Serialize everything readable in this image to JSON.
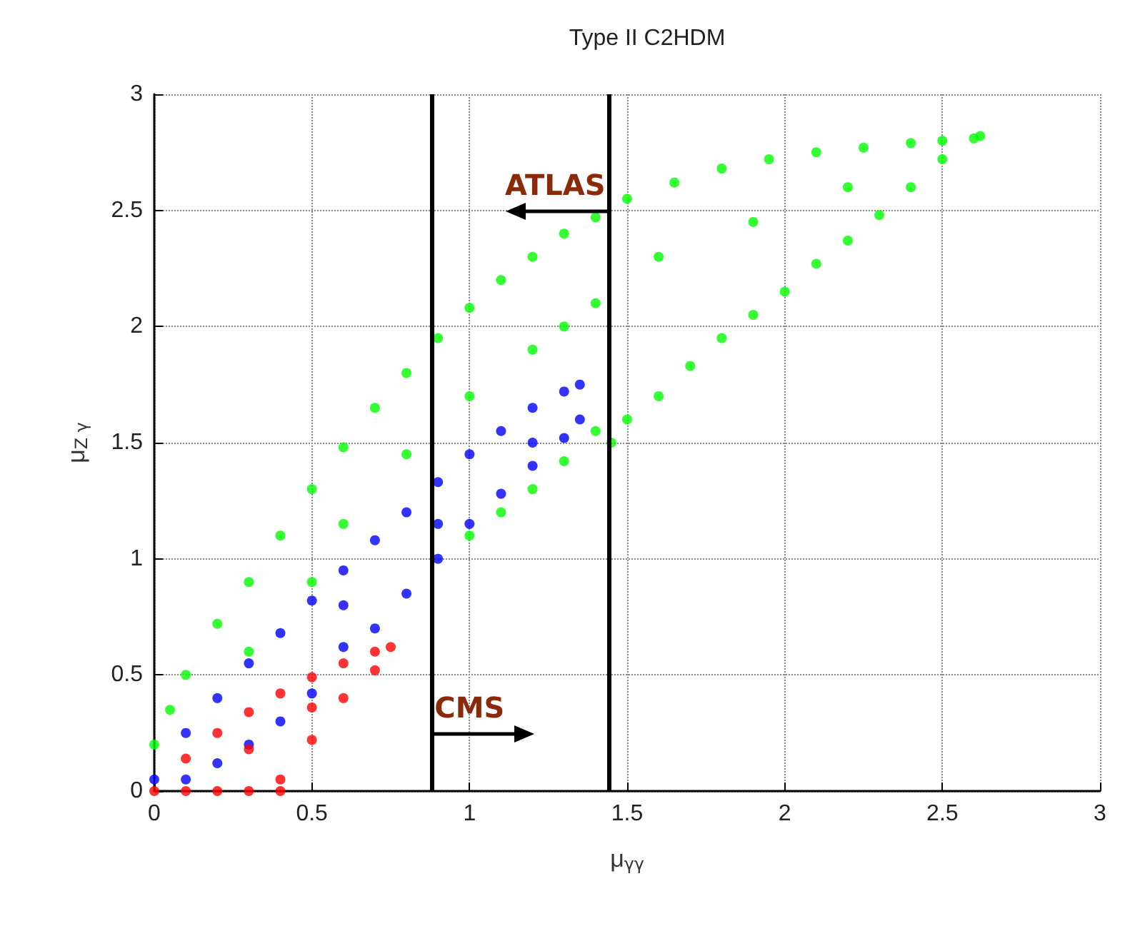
{
  "chart_data": {
    "type": "scatter",
    "title": "Type II C2HDM",
    "xlabel": "μ$_{γγ}$",
    "ylabel": "μ$_{Z γ}$",
    "xlim": [
      0,
      3
    ],
    "ylim": [
      0,
      3
    ],
    "xticks": [
      0,
      0.5,
      1,
      1.5,
      2,
      2.5,
      3
    ],
    "yticks": [
      0,
      0.5,
      1,
      1.5,
      2,
      2.5,
      3
    ],
    "grid": true,
    "marker": "circle",
    "series": [
      {
        "color": "#00ff00",
        "x": [
          0,
          0.05,
          0.1,
          0.2,
          0.3,
          0.4,
          0.5,
          0.6,
          0.7,
          0.8,
          0.9,
          1.0,
          1.1,
          1.2,
          1.3,
          1.4,
          1.5,
          1.65,
          1.8,
          1.95,
          2.1,
          2.25,
          2.4,
          2.5,
          2.6,
          2.62,
          2.5,
          2.4,
          2.3,
          2.2,
          2.1,
          2.0,
          1.9,
          1.8,
          1.7,
          1.6,
          1.5,
          1.45,
          1.4,
          1.3,
          1.2,
          1.1,
          1.0,
          1.3,
          1.6,
          1.9,
          2.2,
          1.0,
          1.2,
          1.4,
          0.6,
          0.8,
          0.3,
          0.5
        ],
        "values": [
          0.2,
          0.35,
          0.5,
          0.72,
          0.9,
          1.1,
          1.3,
          1.48,
          1.65,
          1.8,
          1.95,
          2.08,
          2.2,
          2.3,
          2.4,
          2.47,
          2.55,
          2.62,
          2.68,
          2.72,
          2.75,
          2.77,
          2.79,
          2.8,
          2.81,
          2.82,
          2.72,
          2.6,
          2.48,
          2.37,
          2.27,
          2.15,
          2.05,
          1.95,
          1.83,
          1.7,
          1.6,
          1.5,
          1.55,
          1.42,
          1.3,
          1.2,
          1.1,
          2.0,
          2.3,
          2.45,
          2.6,
          1.7,
          1.9,
          2.1,
          1.15,
          1.45,
          0.6,
          0.9
        ]
      },
      {
        "color": "#0000ff",
        "x": [
          0,
          0.1,
          0.2,
          0.3,
          0.4,
          0.5,
          0.6,
          0.7,
          0.8,
          0.9,
          1.0,
          1.1,
          1.2,
          1.3,
          1.35,
          1.35,
          1.3,
          1.2,
          1.1,
          1.0,
          0.9,
          0.8,
          0.7,
          0.6,
          0.5,
          0.4,
          0.3,
          0.2,
          0.1,
          0.6,
          0.9,
          1.2
        ],
        "values": [
          0.05,
          0.25,
          0.4,
          0.55,
          0.68,
          0.82,
          0.95,
          1.08,
          1.2,
          1.33,
          1.45,
          1.55,
          1.65,
          1.72,
          1.75,
          1.6,
          1.52,
          1.4,
          1.28,
          1.15,
          1.0,
          0.85,
          0.7,
          0.62,
          0.42,
          0.3,
          0.2,
          0.12,
          0.05,
          0.8,
          1.15,
          1.5
        ]
      },
      {
        "color": "#ff0000",
        "x": [
          0,
          0.1,
          0.2,
          0.3,
          0.4,
          0.5,
          0.6,
          0.7,
          0.75,
          0.7,
          0.6,
          0.5,
          0.4,
          0.4,
          0.3,
          0.2,
          0.1,
          0.3,
          0.5
        ],
        "values": [
          0,
          0.14,
          0.25,
          0.34,
          0.42,
          0.49,
          0.55,
          0.6,
          0.62,
          0.52,
          0.4,
          0.22,
          0.05,
          0,
          0,
          0,
          0,
          0.18,
          0.36
        ]
      }
    ],
    "ref_lines": [
      {
        "axis": "x",
        "value": 1.44,
        "color": "#000000",
        "label": "ATLAS"
      },
      {
        "axis": "x",
        "value": 0.88,
        "color": "#000000",
        "label": "CMS"
      }
    ]
  }
}
